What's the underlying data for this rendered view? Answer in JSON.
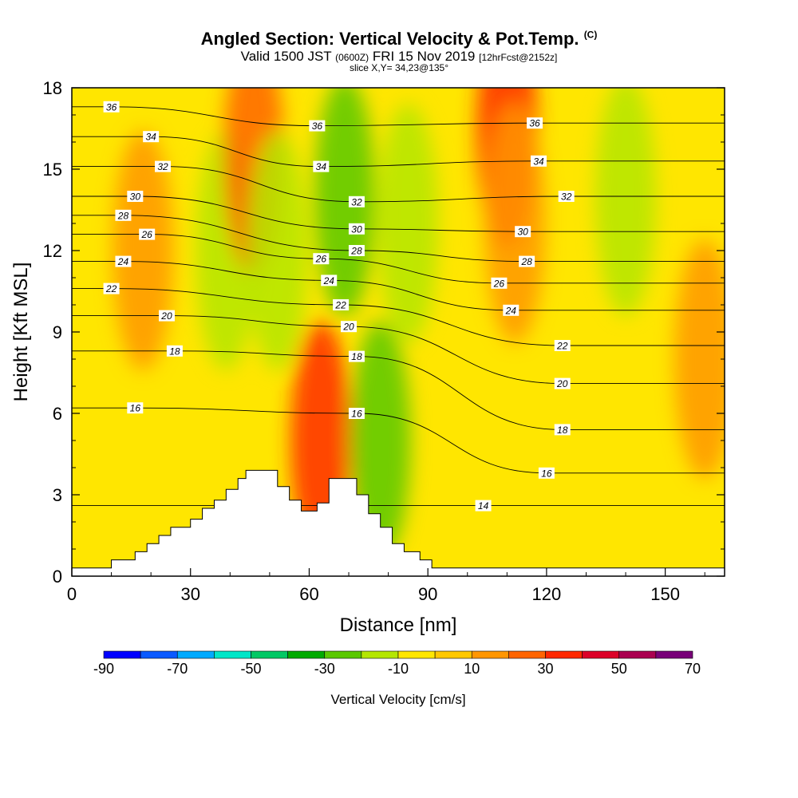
{
  "header": {
    "title": "Angled Section: Vertical Velocity & Pot.Temp.",
    "copyright": "(C)",
    "valid_prefix": "Valid 1500 JST",
    "valid_z": "(0600Z)",
    "valid_date": "FRI 15 Nov 2019",
    "fcst": "[12hrFcst@2152z]",
    "slice": "slice X,Y= 34,23@135°"
  },
  "chart_data": {
    "type": "heatmap",
    "xlabel": "Distance [nm]",
    "ylabel": "Height [Kft MSL]",
    "xlim": [
      0,
      165
    ],
    "ylim": [
      0,
      18
    ],
    "xticks": [
      0,
      30,
      60,
      90,
      120,
      150
    ],
    "yticks": [
      0,
      3,
      6,
      9,
      12,
      15,
      18
    ],
    "grid": false,
    "colorbar": {
      "label": "Vertical Velocity [cm/s]",
      "bounds": [
        -90,
        -80,
        -70,
        -60,
        -50,
        -40,
        -30,
        -20,
        -10,
        0,
        10,
        20,
        30,
        40,
        50,
        60,
        70
      ],
      "tick_labels": [
        "-90",
        "-70",
        "-50",
        "-30",
        "-10",
        "10",
        "30",
        "50",
        "70"
      ],
      "colors": [
        "#0000ff",
        "#0a5aff",
        "#00aaff",
        "#00e6c8",
        "#00c864",
        "#00aa00",
        "#5ac800",
        "#b4e600",
        "#ffe600",
        "#ffc800",
        "#ff9600",
        "#ff6400",
        "#ff2800",
        "#dc0028",
        "#aa0050",
        "#780078"
      ]
    },
    "terrain_top_kft": [
      [
        0,
        0.3
      ],
      [
        10,
        0.3
      ],
      [
        10,
        0.6
      ],
      [
        16,
        0.6
      ],
      [
        16,
        0.9
      ],
      [
        19,
        0.9
      ],
      [
        19,
        1.2
      ],
      [
        22,
        1.2
      ],
      [
        22,
        1.5
      ],
      [
        25,
        1.5
      ],
      [
        25,
        1.8
      ],
      [
        30,
        1.8
      ],
      [
        30,
        2.1
      ],
      [
        33,
        2.1
      ],
      [
        33,
        2.5
      ],
      [
        36,
        2.5
      ],
      [
        36,
        2.8
      ],
      [
        39,
        2.8
      ],
      [
        39,
        3.2
      ],
      [
        42,
        3.2
      ],
      [
        42,
        3.6
      ],
      [
        44,
        3.6
      ],
      [
        44,
        3.9
      ],
      [
        52,
        3.9
      ],
      [
        52,
        3.3
      ],
      [
        55,
        3.3
      ],
      [
        55,
        2.8
      ],
      [
        58,
        2.8
      ],
      [
        58,
        2.4
      ],
      [
        62,
        2.4
      ],
      [
        62,
        2.7
      ],
      [
        65,
        2.7
      ],
      [
        65,
        3.6
      ],
      [
        72,
        3.6
      ],
      [
        72,
        3.0
      ],
      [
        75,
        3.0
      ],
      [
        75,
        2.3
      ],
      [
        78,
        2.3
      ],
      [
        78,
        1.8
      ],
      [
        81,
        1.8
      ],
      [
        81,
        1.2
      ],
      [
        84,
        1.2
      ],
      [
        84,
        0.9
      ],
      [
        88,
        0.9
      ],
      [
        88,
        0.6
      ],
      [
        91,
        0.6
      ],
      [
        91,
        0.3
      ],
      [
        165,
        0.3
      ]
    ],
    "velocity_features": [
      {
        "x": 18,
        "y": 12,
        "value": 15
      },
      {
        "x": 39,
        "y": 12,
        "value": -15
      },
      {
        "x": 46,
        "y": 15.5,
        "value": 25
      },
      {
        "x": 52,
        "y": 12,
        "value": -15
      },
      {
        "x": 69,
        "y": 14,
        "value": -25
      },
      {
        "x": 85,
        "y": 13,
        "value": -15
      },
      {
        "x": 63,
        "y": 5,
        "value": 35
      },
      {
        "x": 78,
        "y": 5,
        "value": -25
      },
      {
        "x": 110,
        "y": 16.5,
        "value": 35
      },
      {
        "x": 112,
        "y": 13,
        "value": 15
      },
      {
        "x": 140,
        "y": 14,
        "value": -15
      },
      {
        "x": 160,
        "y": 8,
        "value": 15
      }
    ],
    "theta_contour_labels": [
      {
        "text": "36",
        "x": 10,
        "y": 17.3
      },
      {
        "text": "34",
        "x": 20,
        "y": 16.2
      },
      {
        "text": "32",
        "x": 23,
        "y": 15.1
      },
      {
        "text": "30",
        "x": 16,
        "y": 14.0
      },
      {
        "text": "28",
        "x": 13,
        "y": 13.3
      },
      {
        "text": "26",
        "x": 19,
        "y": 12.6
      },
      {
        "text": "24",
        "x": 13,
        "y": 11.6
      },
      {
        "text": "22",
        "x": 10,
        "y": 10.6
      },
      {
        "text": "20",
        "x": 24,
        "y": 9.6
      },
      {
        "text": "18",
        "x": 26,
        "y": 8.3
      },
      {
        "text": "16",
        "x": 16,
        "y": 6.2
      },
      {
        "text": "36",
        "x": 62,
        "y": 16.6
      },
      {
        "text": "34",
        "x": 63,
        "y": 15.1
      },
      {
        "text": "32",
        "x": 72,
        "y": 13.8
      },
      {
        "text": "30",
        "x": 72,
        "y": 12.8
      },
      {
        "text": "28",
        "x": 72,
        "y": 12.0
      },
      {
        "text": "26",
        "x": 63,
        "y": 11.7
      },
      {
        "text": "24",
        "x": 65,
        "y": 10.9
      },
      {
        "text": "22",
        "x": 68,
        "y": 10.0
      },
      {
        "text": "20",
        "x": 70,
        "y": 9.2
      },
      {
        "text": "18",
        "x": 72,
        "y": 8.1
      },
      {
        "text": "16",
        "x": 72,
        "y": 6.0
      },
      {
        "text": "36",
        "x": 117,
        "y": 16.7
      },
      {
        "text": "34",
        "x": 118,
        "y": 15.3
      },
      {
        "text": "32",
        "x": 125,
        "y": 14.0
      },
      {
        "text": "30",
        "x": 114,
        "y": 12.7
      },
      {
        "text": "28",
        "x": 115,
        "y": 11.6
      },
      {
        "text": "26",
        "x": 108,
        "y": 10.8
      },
      {
        "text": "24",
        "x": 111,
        "y": 9.8
      },
      {
        "text": "22",
        "x": 124,
        "y": 8.5
      },
      {
        "text": "20",
        "x": 124,
        "y": 7.1
      },
      {
        "text": "18",
        "x": 124,
        "y": 5.4
      },
      {
        "text": "16",
        "x": 120,
        "y": 3.8
      },
      {
        "text": "14",
        "x": 104,
        "y": 2.6
      }
    ]
  }
}
